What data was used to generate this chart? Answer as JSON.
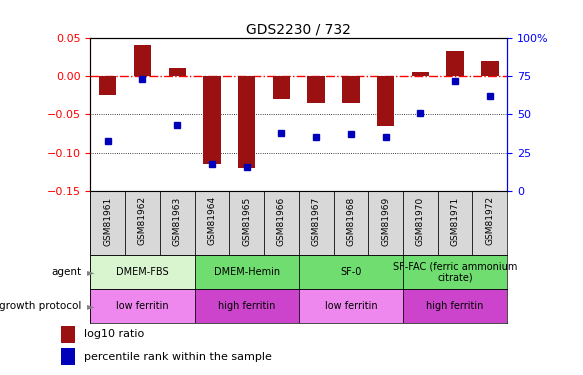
{
  "title": "GDS2230 / 732",
  "samples": [
    "GSM81961",
    "GSM81962",
    "GSM81963",
    "GSM81964",
    "GSM81965",
    "GSM81966",
    "GSM81967",
    "GSM81968",
    "GSM81969",
    "GSM81970",
    "GSM81971",
    "GSM81972"
  ],
  "log10_ratio": [
    -0.025,
    0.04,
    0.01,
    -0.115,
    -0.12,
    -0.03,
    -0.035,
    -0.035,
    -0.065,
    0.005,
    0.033,
    0.02
  ],
  "percentile_rank": [
    33,
    73,
    43,
    18,
    16,
    38,
    35,
    37,
    35,
    51,
    72,
    62
  ],
  "left_ylim": [
    -0.15,
    0.05
  ],
  "right_ylim": [
    0,
    100
  ],
  "left_yticks": [
    -0.15,
    -0.1,
    -0.05,
    0.0,
    0.05
  ],
  "right_yticks": [
    0,
    25,
    50,
    75,
    100
  ],
  "right_yticklabels": [
    "0",
    "25",
    "50",
    "75",
    "100%"
  ],
  "hline_y": 0.0,
  "dotted_lines": [
    -0.05,
    -0.1
  ],
  "bar_color": "#9B1010",
  "dot_color": "#0000BB",
  "agent_groups": [
    {
      "label": "DMEM-FBS",
      "start": 0,
      "end": 2,
      "color": "#d8f5d0"
    },
    {
      "label": "DMEM-Hemin",
      "start": 3,
      "end": 5,
      "color": "#70dd70"
    },
    {
      "label": "SF-0",
      "start": 6,
      "end": 8,
      "color": "#70dd70"
    },
    {
      "label": "SF-FAC (ferric ammonium\ncitrate)",
      "start": 9,
      "end": 11,
      "color": "#70dd70"
    }
  ],
  "growth_groups": [
    {
      "label": "low ferritin",
      "start": 0,
      "end": 2,
      "color": "#ee88ee"
    },
    {
      "label": "high ferritin",
      "start": 3,
      "end": 5,
      "color": "#cc44cc"
    },
    {
      "label": "low ferritin",
      "start": 6,
      "end": 8,
      "color": "#ee88ee"
    },
    {
      "label": "high ferritin",
      "start": 9,
      "end": 11,
      "color": "#cc44cc"
    }
  ],
  "label_agent": "agent",
  "label_growth": "growth protocol",
  "legend_bar_label": "log10 ratio",
  "legend_dot_label": "percentile rank within the sample",
  "background_color": "#ffffff",
  "sample_box_color": "#d8d8d8",
  "bar_width": 0.5
}
